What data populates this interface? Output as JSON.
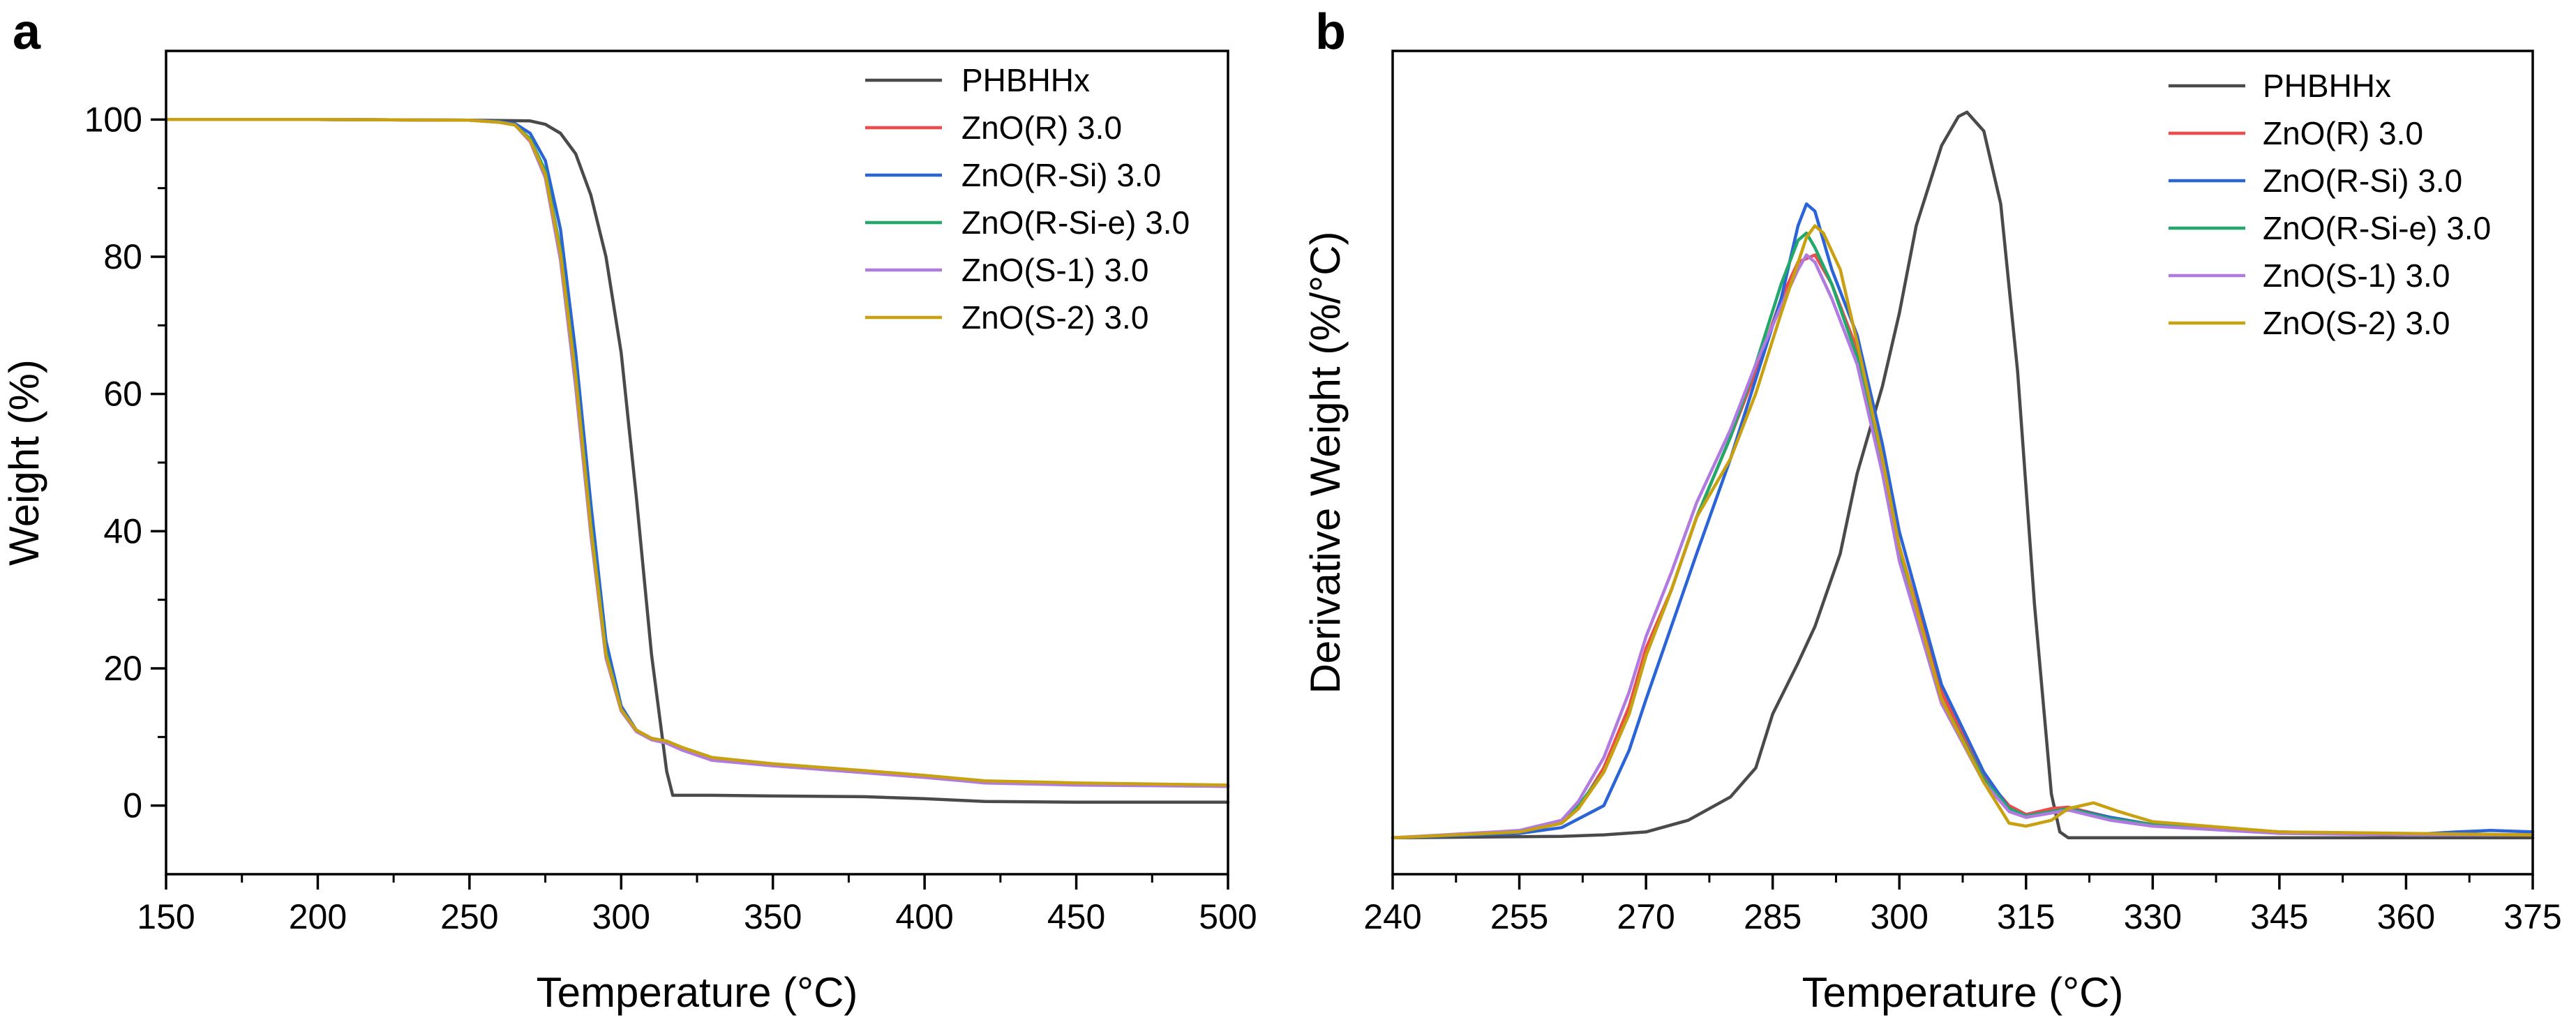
{
  "figure": {
    "panel_labels": [
      "a",
      "b"
    ]
  },
  "legend_labels": [
    "PHBHHx",
    "ZnO(R) 3.0",
    "ZnO(R-Si) 3.0",
    "ZnO(R-Si-e) 3.0",
    "ZnO(S-1) 3.0",
    "ZnO(S-2) 3.0"
  ],
  "colors": {
    "PHBHHx": "#4a4a4a",
    "ZnO(R) 3.0": "#f04a4a",
    "ZnO(R-Si) 3.0": "#2a64d6",
    "ZnO(R-Si-e) 3.0": "#21a86a",
    "ZnO(S-1) 3.0": "#b07ae0",
    "ZnO(S-2) 3.0": "#c9a010"
  },
  "chart_data": [
    {
      "panel": "a",
      "type": "line",
      "title": "",
      "xlabel": "Temperature (°C)",
      "ylabel": "Weight (%)",
      "xlim": [
        150,
        500
      ],
      "ylim": [
        -10,
        110
      ],
      "xticks": [
        150,
        200,
        250,
        300,
        350,
        400,
        450,
        500
      ],
      "yticks": [
        0,
        20,
        40,
        60,
        80,
        100
      ],
      "grid": false,
      "legend_position": "top-right",
      "series": [
        {
          "name": "PHBHHx",
          "x": [
            150,
            200,
            250,
            270,
            275,
            280,
            285,
            290,
            295,
            300,
            305,
            310,
            315,
            317,
            320,
            330,
            350,
            380,
            400,
            420,
            450,
            500
          ],
          "y": [
            100,
            100,
            99.9,
            99.8,
            99.3,
            98,
            95,
            89,
            80,
            66,
            45,
            22,
            5,
            1.5,
            1.5,
            1.5,
            1.4,
            1.3,
            1.0,
            0.6,
            0.5,
            0.5
          ]
        },
        {
          "name": "ZnO(R) 3.0",
          "x": [
            150,
            200,
            250,
            260,
            265,
            270,
            275,
            280,
            285,
            290,
            295,
            300,
            305,
            310,
            315,
            320,
            330,
            350,
            380,
            400,
            420,
            450,
            500
          ],
          "y": [
            100,
            100,
            99.9,
            99.6,
            99.2,
            97,
            92,
            80,
            62,
            40,
            22,
            14,
            11,
            9.7,
            9.3,
            8.3,
            6.8,
            6.0,
            5.0,
            4.3,
            3.5,
            3.2,
            2.9
          ]
        },
        {
          "name": "ZnO(R-Si) 3.0",
          "x": [
            150,
            200,
            250,
            260,
            265,
            270,
            275,
            280,
            285,
            290,
            295,
            300,
            305,
            310,
            315,
            320,
            330,
            350,
            380,
            400,
            420,
            450,
            500
          ],
          "y": [
            100,
            100,
            99.9,
            99.7,
            99.4,
            98,
            94,
            84,
            66,
            44,
            24,
            14.5,
            11,
            9.8,
            9.4,
            8.4,
            6.9,
            6.0,
            5.0,
            4.3,
            3.5,
            3.2,
            2.9
          ]
        },
        {
          "name": "ZnO(R-Si-e) 3.0",
          "x": [
            150,
            200,
            250,
            260,
            265,
            270,
            275,
            280,
            285,
            290,
            295,
            300,
            305,
            310,
            315,
            320,
            330,
            350,
            380,
            400,
            420,
            450,
            500
          ],
          "y": [
            100,
            100,
            99.9,
            99.6,
            99.2,
            97.2,
            92.5,
            81,
            63,
            41,
            22.5,
            14,
            11,
            9.7,
            9.2,
            8.2,
            6.7,
            5.9,
            4.9,
            4.2,
            3.4,
            3.1,
            2.8
          ]
        },
        {
          "name": "ZnO(S-1) 3.0",
          "x": [
            150,
            200,
            250,
            260,
            265,
            270,
            275,
            280,
            285,
            290,
            295,
            300,
            305,
            310,
            315,
            320,
            330,
            350,
            380,
            400,
            420,
            450,
            500
          ],
          "y": [
            100,
            100,
            99.9,
            99.6,
            99.2,
            96.8,
            91.5,
            79.5,
            61,
            39.5,
            21.5,
            13.8,
            10.8,
            9.6,
            9.1,
            8.1,
            6.6,
            5.8,
            4.8,
            4.1,
            3.3,
            3.0,
            2.8
          ]
        },
        {
          "name": "ZnO(S-2) 3.0",
          "x": [
            150,
            200,
            250,
            260,
            265,
            270,
            275,
            280,
            285,
            290,
            295,
            300,
            305,
            310,
            315,
            320,
            330,
            350,
            380,
            400,
            420,
            450,
            500
          ],
          "y": [
            100,
            100,
            99.9,
            99.6,
            99.2,
            97,
            92,
            80.5,
            62.5,
            40.5,
            22,
            14,
            11,
            9.8,
            9.4,
            8.5,
            7.0,
            6.1,
            5.1,
            4.4,
            3.6,
            3.3,
            3.0
          ]
        }
      ]
    },
    {
      "panel": "b",
      "type": "line",
      "title": "",
      "xlabel": "Temperature (°C)",
      "ylabel": "Derivative Weight (%/°C)",
      "xlim": [
        240,
        375
      ],
      "ylim": [
        -0.25,
        5.4
      ],
      "xticks": [
        240,
        255,
        270,
        285,
        300,
        315,
        330,
        345,
        360,
        375
      ],
      "yticks": [],
      "grid": false,
      "legend_position": "top-right",
      "series": [
        {
          "name": "PHBHHx",
          "x": [
            240,
            260,
            265,
            270,
            275,
            280,
            283,
            285,
            288,
            290,
            293,
            295,
            298,
            300,
            302,
            305,
            307,
            308,
            310,
            312,
            314,
            316,
            318,
            319,
            320,
            330,
            345,
            360,
            375
          ],
          "y": [
            0,
            0.01,
            0.02,
            0.04,
            0.12,
            0.28,
            0.48,
            0.85,
            1.2,
            1.45,
            1.95,
            2.5,
            3.1,
            3.6,
            4.2,
            4.75,
            4.95,
            4.98,
            4.85,
            4.35,
            3.2,
            1.6,
            0.3,
            0.04,
            0.0,
            0.0,
            0.0,
            0.0,
            0.0
          ]
        },
        {
          "name": "ZnO(R) 3.0",
          "x": [
            240,
            255,
            260,
            262,
            265,
            268,
            270,
            273,
            276,
            280,
            283,
            286,
            288,
            290,
            292,
            295,
            298,
            300,
            305,
            310,
            313,
            315,
            318,
            320,
            325,
            330,
            345,
            360,
            375
          ],
          "y": [
            0,
            0.04,
            0.1,
            0.2,
            0.48,
            0.9,
            1.3,
            1.7,
            2.2,
            2.75,
            3.2,
            3.7,
            3.95,
            4.0,
            3.8,
            3.35,
            2.55,
            2.0,
            1.0,
            0.42,
            0.22,
            0.16,
            0.2,
            0.21,
            0.14,
            0.09,
            0.04,
            0.02,
            0.02
          ]
        },
        {
          "name": "ZnO(R-Si) 3.0",
          "x": [
            240,
            255,
            260,
            265,
            268,
            270,
            273,
            276,
            280,
            283,
            286,
            288,
            289,
            290,
            292,
            295,
            298,
            300,
            305,
            310,
            313,
            315,
            318,
            320,
            325,
            330,
            345,
            360,
            366,
            370,
            375
          ],
          "y": [
            0,
            0.03,
            0.07,
            0.22,
            0.6,
            0.95,
            1.45,
            1.95,
            2.6,
            3.15,
            3.7,
            4.2,
            4.35,
            4.3,
            3.9,
            3.45,
            2.7,
            2.1,
            1.05,
            0.45,
            0.2,
            0.15,
            0.18,
            0.2,
            0.14,
            0.09,
            0.04,
            0.02,
            0.04,
            0.05,
            0.04
          ]
        },
        {
          "name": "ZnO(R-Si-e) 3.0",
          "x": [
            240,
            255,
            260,
            262,
            265,
            268,
            270,
            273,
            276,
            280,
            283,
            286,
            288,
            289,
            290,
            292,
            295,
            298,
            300,
            305,
            310,
            313,
            315,
            318,
            320,
            325,
            330,
            345,
            360,
            375
          ],
          "y": [
            0,
            0.04,
            0.1,
            0.22,
            0.45,
            0.85,
            1.25,
            1.7,
            2.2,
            2.75,
            3.25,
            3.8,
            4.1,
            4.15,
            4.05,
            3.8,
            3.3,
            2.55,
            1.95,
            0.95,
            0.4,
            0.2,
            0.15,
            0.18,
            0.2,
            0.13,
            0.09,
            0.04,
            0.02,
            0.02
          ]
        },
        {
          "name": "ZnO(S-1) 3.0",
          "x": [
            240,
            255,
            260,
            262,
            265,
            268,
            270,
            273,
            276,
            280,
            283,
            286,
            288,
            289,
            290,
            292,
            295,
            298,
            300,
            305,
            310,
            313,
            315,
            318,
            320,
            325,
            330,
            345,
            360,
            375
          ],
          "y": [
            0,
            0.05,
            0.12,
            0.25,
            0.55,
            1.0,
            1.38,
            1.82,
            2.3,
            2.8,
            3.25,
            3.65,
            3.9,
            4.0,
            3.95,
            3.7,
            3.25,
            2.5,
            1.9,
            0.92,
            0.38,
            0.18,
            0.14,
            0.17,
            0.19,
            0.12,
            0.08,
            0.03,
            0.02,
            0.02
          ]
        },
        {
          "name": "ZnO(S-2) 3.0",
          "x": [
            240,
            255,
            260,
            262,
            265,
            268,
            270,
            273,
            276,
            280,
            283,
            286,
            289,
            290,
            291,
            293,
            295,
            298,
            300,
            305,
            310,
            313,
            315,
            318,
            320,
            323,
            326,
            330,
            345,
            360,
            375
          ],
          "y": [
            0,
            0.04,
            0.1,
            0.2,
            0.45,
            0.85,
            1.25,
            1.7,
            2.2,
            2.6,
            3.05,
            3.6,
            4.12,
            4.2,
            4.15,
            3.9,
            3.4,
            2.6,
            2.0,
            0.95,
            0.38,
            0.1,
            0.08,
            0.12,
            0.2,
            0.24,
            0.18,
            0.11,
            0.04,
            0.03,
            0.02
          ]
        }
      ]
    }
  ]
}
